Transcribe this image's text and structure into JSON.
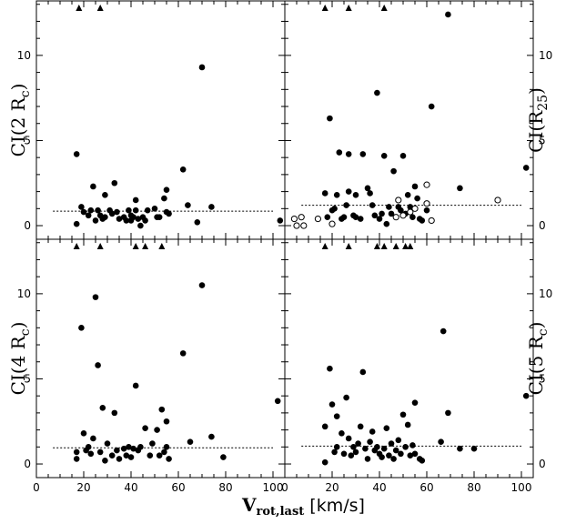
{
  "chart_data": [
    {
      "type": "scatter",
      "panel": "top-left",
      "ylabel": {
        "main": "CI(2 R",
        "sub": "c",
        "close": ")"
      },
      "xlim": [
        0,
        105
      ],
      "ylim": [
        -0.8,
        13.2
      ],
      "xticks": [
        "0",
        "20",
        "40",
        "60",
        "80",
        "100"
      ],
      "yticks": [
        "0",
        "5",
        "10"
      ],
      "dashed_line_y": 0.85,
      "triangles_x": [
        18,
        27
      ],
      "filled": [
        [
          17,
          4.2
        ],
        [
          17,
          0.1
        ],
        [
          19,
          1.1
        ],
        [
          20,
          0.8
        ],
        [
          22,
          0.6
        ],
        [
          23,
          0.9
        ],
        [
          24,
          2.3
        ],
        [
          25,
          0.3
        ],
        [
          26,
          0.9
        ],
        [
          27,
          0.6
        ],
        [
          28,
          0.4
        ],
        [
          29,
          0.5
        ],
        [
          29,
          1.8
        ],
        [
          31,
          0.9
        ],
        [
          32,
          0.7
        ],
        [
          33,
          2.5
        ],
        [
          34,
          0.8
        ],
        [
          35,
          0.4
        ],
        [
          37,
          0.5
        ],
        [
          38,
          0.3
        ],
        [
          39,
          0.9
        ],
        [
          40,
          0.3
        ],
        [
          40,
          0.6
        ],
        [
          41,
          0.5
        ],
        [
          42,
          1.5
        ],
        [
          42,
          0.9
        ],
        [
          43,
          0.4
        ],
        [
          44,
          0.0
        ],
        [
          45,
          0.5
        ],
        [
          46,
          0.3
        ],
        [
          47,
          0.9
        ],
        [
          50,
          1.0
        ],
        [
          51,
          0.5
        ],
        [
          52,
          0.5
        ],
        [
          54,
          1.6
        ],
        [
          55,
          2.1
        ],
        [
          55,
          0.8
        ],
        [
          56,
          0.7
        ],
        [
          62,
          3.3
        ],
        [
          64,
          1.2
        ],
        [
          68,
          0.2
        ],
        [
          70,
          9.3
        ],
        [
          74,
          1.1
        ],
        [
          103,
          0.3
        ]
      ],
      "open": []
    },
    {
      "type": "scatter",
      "panel": "top-right",
      "ylabel": {
        "main": "CI(R",
        "sub": "25",
        "close": ")"
      },
      "xlim": [
        0,
        105
      ],
      "ylim": [
        -0.8,
        13.2
      ],
      "xticks": [
        "0",
        "20",
        "40",
        "60",
        "80",
        "100"
      ],
      "yticks": [
        "0",
        "5",
        "10"
      ],
      "dashed_line_y": 1.2,
      "triangles_x": [
        17,
        27,
        42
      ],
      "filled": [
        [
          17,
          1.9
        ],
        [
          18,
          0.5
        ],
        [
          19,
          6.3
        ],
        [
          20,
          0.9
        ],
        [
          21,
          1.0
        ],
        [
          22,
          1.8
        ],
        [
          23,
          4.3
        ],
        [
          24,
          0.4
        ],
        [
          25,
          0.5
        ],
        [
          26,
          1.2
        ],
        [
          27,
          2.0
        ],
        [
          27,
          4.2
        ],
        [
          29,
          0.6
        ],
        [
          30,
          0.5
        ],
        [
          30,
          1.8
        ],
        [
          32,
          0.4
        ],
        [
          33,
          4.2
        ],
        [
          35,
          2.2
        ],
        [
          36,
          1.9
        ],
        [
          37,
          1.2
        ],
        [
          38,
          0.6
        ],
        [
          39,
          7.8
        ],
        [
          40,
          0.4
        ],
        [
          41,
          0.7
        ],
        [
          42,
          4.1
        ],
        [
          43,
          0.1
        ],
        [
          44,
          1.1
        ],
        [
          45,
          0.7
        ],
        [
          46,
          3.2
        ],
        [
          48,
          1.1
        ],
        [
          49,
          0.9
        ],
        [
          50,
          4.1
        ],
        [
          51,
          0.7
        ],
        [
          52,
          1.8
        ],
        [
          53,
          1.1
        ],
        [
          54,
          0.5
        ],
        [
          55,
          2.3
        ],
        [
          56,
          1.6
        ],
        [
          57,
          0.4
        ],
        [
          58,
          0.3
        ],
        [
          60,
          0.9
        ],
        [
          62,
          7.0
        ],
        [
          69,
          12.4
        ],
        [
          74,
          2.2
        ],
        [
          102,
          3.4
        ]
      ],
      "open": [
        [
          4,
          0.4
        ],
        [
          5,
          0.0
        ],
        [
          7,
          0.5
        ],
        [
          8,
          0.0
        ],
        [
          14,
          0.4
        ],
        [
          20,
          0.1
        ],
        [
          47,
          0.5
        ],
        [
          48,
          1.5
        ],
        [
          50,
          0.6
        ],
        [
          53,
          0.8
        ],
        [
          55,
          1.0
        ],
        [
          60,
          2.4
        ],
        [
          60,
          1.3
        ],
        [
          62,
          0.3
        ],
        [
          90,
          1.5
        ]
      ]
    },
    {
      "type": "scatter",
      "panel": "bottom-left",
      "ylabel": {
        "main": "CI(4 R",
        "sub": "c",
        "close": ")"
      },
      "xlim": [
        0,
        105
      ],
      "ylim": [
        -0.8,
        13.2
      ],
      "xticks": [
        "0",
        "20",
        "40",
        "60",
        "80",
        "100"
      ],
      "yticks": [
        "0",
        "5",
        "10"
      ],
      "dashed_line_y": 0.95,
      "triangles_x": [
        17,
        27,
        42,
        46,
        53
      ],
      "filled": [
        [
          17,
          0.3
        ],
        [
          17,
          0.7
        ],
        [
          19,
          8.0
        ],
        [
          20,
          1.8
        ],
        [
          21,
          0.8
        ],
        [
          22,
          1.0
        ],
        [
          23,
          0.6
        ],
        [
          24,
          1.5
        ],
        [
          25,
          9.8
        ],
        [
          26,
          5.8
        ],
        [
          27,
          0.7
        ],
        [
          28,
          3.3
        ],
        [
          29,
          0.2
        ],
        [
          30,
          1.2
        ],
        [
          32,
          0.5
        ],
        [
          33,
          3.0
        ],
        [
          34,
          0.8
        ],
        [
          35,
          0.3
        ],
        [
          37,
          0.9
        ],
        [
          38,
          0.5
        ],
        [
          39,
          1.0
        ],
        [
          40,
          0.4
        ],
        [
          41,
          0.9
        ],
        [
          42,
          4.6
        ],
        [
          43,
          0.8
        ],
        [
          44,
          1.0
        ],
        [
          46,
          2.1
        ],
        [
          48,
          0.5
        ],
        [
          49,
          1.2
        ],
        [
          51,
          2.0
        ],
        [
          52,
          0.5
        ],
        [
          53,
          3.2
        ],
        [
          54,
          0.7
        ],
        [
          55,
          2.5
        ],
        [
          55,
          1.0
        ],
        [
          56,
          0.3
        ],
        [
          62,
          6.5
        ],
        [
          65,
          1.3
        ],
        [
          70,
          10.5
        ],
        [
          74,
          1.6
        ],
        [
          79,
          0.4
        ],
        [
          102,
          3.7
        ]
      ],
      "open": []
    },
    {
      "type": "scatter",
      "panel": "bottom-right",
      "ylabel": {
        "main": "CI(5 R",
        "sub": "c",
        "close": ")"
      },
      "xlim": [
        0,
        105
      ],
      "ylim": [
        -0.8,
        13.2
      ],
      "xticks": [
        "0",
        "20",
        "40",
        "60",
        "80",
        "100"
      ],
      "yticks": [
        "0",
        "5",
        "10"
      ],
      "dashed_line_y": 1.05,
      "triangles_x": [
        17,
        27,
        39,
        42,
        47,
        51,
        53
      ],
      "filled": [
        [
          17,
          0.1
        ],
        [
          17,
          2.2
        ],
        [
          19,
          5.6
        ],
        [
          20,
          3.5
        ],
        [
          21,
          0.7
        ],
        [
          22,
          1.0
        ],
        [
          22,
          2.8
        ],
        [
          24,
          1.8
        ],
        [
          25,
          0.6
        ],
        [
          26,
          3.9
        ],
        [
          27,
          1.5
        ],
        [
          28,
          0.5
        ],
        [
          29,
          1.0
        ],
        [
          30,
          0.7
        ],
        [
          31,
          1.2
        ],
        [
          32,
          2.2
        ],
        [
          33,
          5.4
        ],
        [
          34,
          0.9
        ],
        [
          35,
          0.3
        ],
        [
          36,
          1.3
        ],
        [
          37,
          1.9
        ],
        [
          38,
          0.8
        ],
        [
          39,
          1.0
        ],
        [
          40,
          0.6
        ],
        [
          41,
          0.4
        ],
        [
          42,
          0.9
        ],
        [
          43,
          2.1
        ],
        [
          44,
          0.5
        ],
        [
          45,
          1.2
        ],
        [
          46,
          0.3
        ],
        [
          47,
          0.8
        ],
        [
          48,
          1.4
        ],
        [
          49,
          0.6
        ],
        [
          50,
          2.9
        ],
        [
          51,
          1.0
        ],
        [
          52,
          2.3
        ],
        [
          53,
          0.5
        ],
        [
          54,
          1.1
        ],
        [
          55,
          3.6
        ],
        [
          55,
          0.6
        ],
        [
          57,
          0.3
        ],
        [
          58,
          0.2
        ],
        [
          66,
          1.3
        ],
        [
          67,
          7.8
        ],
        [
          69,
          3.0
        ],
        [
          74,
          0.9
        ],
        [
          80,
          0.9
        ],
        [
          102,
          4.0
        ]
      ],
      "open": []
    }
  ],
  "x_axis": {
    "label_main": "V",
    "label_sub": "rot,last",
    "label_unit": "[km/s]"
  }
}
